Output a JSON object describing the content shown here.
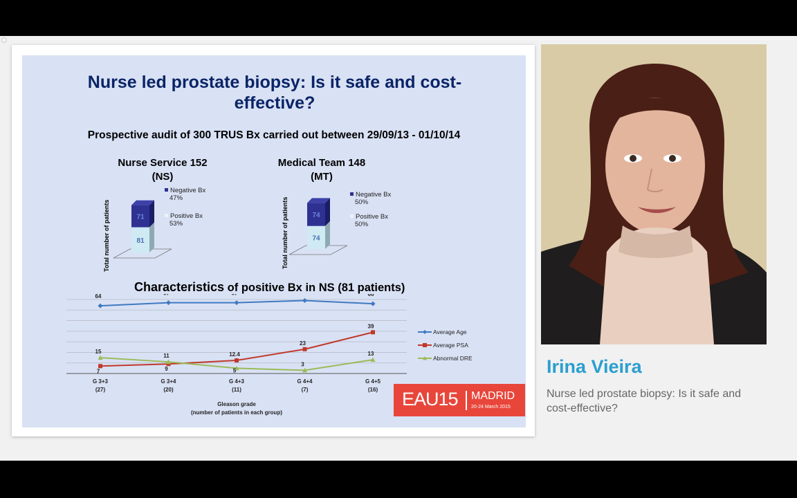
{
  "slide": {
    "title": "Nurse led prostate biopsy: Is it safe and cost-effective?",
    "title_line1": "Nurse led prostate biopsy: Is it safe and cost-",
    "title_line2": "effective?",
    "audit_text": "Prospective audit of 300 TRUS Bx carried out between 29/09/13 - 01/10/14",
    "bar_ylabel": "Total number of patients",
    "ns": {
      "heading_line1": "Nurse Service 152",
      "heading_line2": "(NS)",
      "negative_value": "71",
      "positive_value": "81",
      "legend_negative": "Negative Bx",
      "legend_negative_pct": "47%",
      "legend_positive": "Positive Bx",
      "legend_positive_pct": "53%"
    },
    "mt": {
      "heading_line1": "Medical Team 148",
      "heading_line2": "(MT)",
      "negative_value": "74",
      "positive_value": "74",
      "legend_negative": "Negative Bx",
      "legend_negative_pct": "50%",
      "legend_positive": "Positive Bx",
      "legend_positive_pct": "50%"
    },
    "characteristics_title_word": "Characteristics",
    "characteristics_title_rest": "of positive Bx in NS (81 patients)",
    "logo": {
      "eau": "EAU15",
      "city": "MADRID",
      "dates": "20-24 March 2015"
    }
  },
  "speaker": {
    "name": "Irina Vieira",
    "talk_title": "Nurse led prostate biopsy: Is it safe and cost-effective?"
  },
  "colors": {
    "negative": "#2e3192",
    "positive": "#cfeaf3",
    "age": "#3f79c1",
    "psa": "#c0392b",
    "dre": "#9bbb59",
    "accent": "#2a9fd0",
    "logo": "#e8463b"
  },
  "chart_data": [
    {
      "type": "bar",
      "title": "Nurse Service 152 (NS)",
      "ylabel": "Total number of patients",
      "stacked": true,
      "series": [
        {
          "name": "Positive Bx",
          "values": [
            81
          ]
        },
        {
          "name": "Negative Bx",
          "values": [
            71
          ]
        }
      ]
    },
    {
      "type": "bar",
      "title": "Medical Team 148 (MT)",
      "ylabel": "Total number of patients",
      "stacked": true,
      "series": [
        {
          "name": "Positive Bx",
          "values": [
            74
          ]
        },
        {
          "name": "Negative Bx",
          "values": [
            74
          ]
        }
      ]
    },
    {
      "type": "line",
      "title": "Characteristics of positive Bx in NS (81 patients)",
      "xlabel": "Gleason grade",
      "xlabel2": "(number of patients in each group)",
      "categories": [
        "G  3+3",
        "G 3+4",
        "G 4+3",
        "G 4+4",
        "G 4+5"
      ],
      "category_counts": [
        "(27)",
        "(20)",
        "(11)",
        "(7)",
        "(16)"
      ],
      "ylim": [
        0,
        70
      ],
      "legend": "right",
      "series": [
        {
          "name": "Average Age",
          "values": [
            64,
            67,
            67,
            69,
            66
          ],
          "labels": [
            "64",
            "67",
            "67",
            "69",
            "66"
          ]
        },
        {
          "name": "Average PSA",
          "values": [
            7,
            9,
            12.4,
            23,
            39
          ],
          "labels": [
            "7",
            "9",
            "12.4",
            "23",
            "39"
          ]
        },
        {
          "name": "Abnormal DRE",
          "values": [
            15,
            11,
            5,
            3,
            13
          ],
          "labels": [
            "15",
            "11",
            "5",
            "3",
            "13"
          ]
        }
      ]
    }
  ]
}
